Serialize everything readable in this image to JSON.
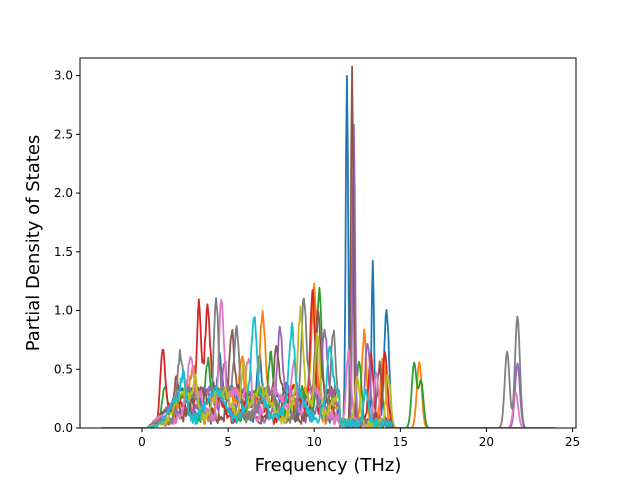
{
  "chart_data": {
    "type": "line",
    "title": "",
    "xlabel": "Frequency (THz)",
    "ylabel": "Partial Density of States",
    "xlim": [
      -3.6,
      25.2
    ],
    "ylim": [
      0,
      3.15
    ],
    "xticks": [
      0,
      5,
      10,
      15,
      20,
      25
    ],
    "yticks": [
      0.0,
      0.5,
      1.0,
      1.5,
      2.0,
      2.5,
      3.0
    ],
    "xtick_labels": [
      "0",
      "5",
      "10",
      "15",
      "20",
      "25"
    ],
    "ytick_labels": [
      "0.0",
      "0.5",
      "1.0",
      "1.5",
      "2.0",
      "2.5",
      "3.0"
    ],
    "grid": false,
    "legend": "none",
    "series": [
      {
        "color": "#1f77b4",
        "peaks": [
          [
            2.2,
            0.2
          ],
          [
            4.5,
            0.45
          ],
          [
            6.8,
            0.45
          ],
          [
            8.4,
            0.3
          ],
          [
            11.9,
            2.95
          ],
          [
            13.4,
            1.41
          ],
          [
            14.2,
            0.96
          ]
        ]
      },
      {
        "color": "#ff7f0e",
        "peaks": [
          [
            3.0,
            0.3
          ],
          [
            5.8,
            0.5
          ],
          [
            7.0,
            0.7
          ],
          [
            10.0,
            0.95
          ],
          [
            12.9,
            0.76
          ],
          [
            14.0,
            0.55
          ],
          [
            16.1,
            0.56
          ]
        ]
      },
      {
        "color": "#2ca02c",
        "peaks": [
          [
            1.3,
            0.3
          ],
          [
            3.8,
            0.4
          ],
          [
            7.5,
            0.45
          ],
          [
            10.3,
            1.12
          ],
          [
            12.6,
            0.55
          ],
          [
            15.8,
            0.55
          ],
          [
            16.2,
            0.4
          ]
        ]
      },
      {
        "color": "#d62728",
        "peaks": [
          [
            1.2,
            0.6
          ],
          [
            3.3,
            0.92
          ],
          [
            3.8,
            0.75
          ],
          [
            9.9,
            1.1
          ],
          [
            13.3,
            0.58
          ],
          [
            14.1,
            0.6
          ]
        ]
      },
      {
        "color": "#9467bd",
        "peaks": [
          [
            2.6,
            0.3
          ],
          [
            4.8,
            0.5
          ],
          [
            8.0,
            0.6
          ],
          [
            10.6,
            0.5
          ],
          [
            12.3,
            2.55
          ],
          [
            13.1,
            0.7
          ],
          [
            21.8,
            0.55
          ]
        ]
      },
      {
        "color": "#8c564b",
        "peaks": [
          [
            2.0,
            0.35
          ],
          [
            5.2,
            0.6
          ],
          [
            7.8,
            0.4
          ],
          [
            10.2,
            0.7
          ],
          [
            12.2,
            3.02
          ],
          [
            13.8,
            0.5
          ]
        ]
      },
      {
        "color": "#e377c2",
        "peaks": [
          [
            2.8,
            0.3
          ],
          [
            4.6,
            0.96
          ],
          [
            6.2,
            0.5
          ],
          [
            8.8,
            0.5
          ],
          [
            12.0,
            0.6
          ],
          [
            13.6,
            0.4
          ],
          [
            21.7,
            0.3
          ]
        ]
      },
      {
        "color": "#7f7f7f",
        "peaks": [
          [
            2.2,
            0.42
          ],
          [
            4.3,
            0.92
          ],
          [
            5.5,
            0.65
          ],
          [
            9.4,
            0.82
          ],
          [
            11.1,
            0.72
          ],
          [
            21.2,
            0.65
          ],
          [
            21.8,
            0.95
          ]
        ]
      },
      {
        "color": "#bcbd22",
        "peaks": [
          [
            3.1,
            0.3
          ],
          [
            5.9,
            0.5
          ],
          [
            9.2,
            0.68
          ],
          [
            10.2,
            0.7
          ],
          [
            12.5,
            0.4
          ],
          [
            14.3,
            0.4
          ]
        ]
      },
      {
        "color": "#17becf",
        "peaks": [
          [
            2.4,
            0.25
          ],
          [
            6.5,
            0.65
          ],
          [
            8.7,
            0.55
          ],
          [
            10.9,
            0.4
          ],
          [
            13.0,
            0.3
          ]
        ]
      }
    ]
  }
}
